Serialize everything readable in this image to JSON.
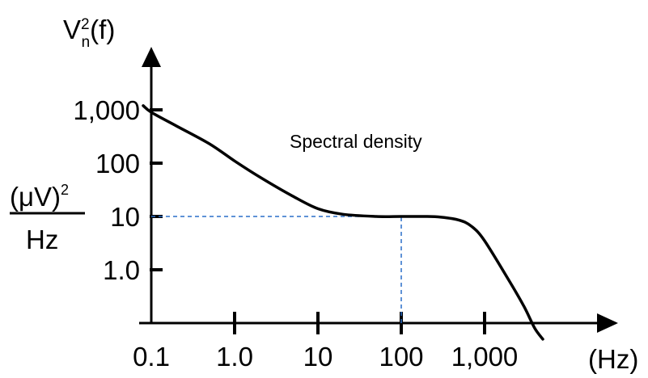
{
  "chart_data": {
    "type": "line",
    "title": "",
    "annotation": "Spectral density",
    "ylabel": {
      "symbol": "V",
      "superscript": "2",
      "subscript": "n",
      "argument": "(f)",
      "unit_numerator": "(μV)",
      "unit_numerator_superscript": "2",
      "unit_denominator": "Hz"
    },
    "xlabel": "(Hz)",
    "x_scale": "log",
    "y_scale": "log",
    "x_ticks": [
      {
        "value": 0.1,
        "label": "0.1"
      },
      {
        "value": 1,
        "label": "1.0"
      },
      {
        "value": 10,
        "label": "10"
      },
      {
        "value": 100,
        "label": "100"
      },
      {
        "value": 1000,
        "label": "1,000"
      }
    ],
    "y_ticks": [
      {
        "value": 1,
        "label": "1.0"
      },
      {
        "value": 10,
        "label": "10"
      },
      {
        "value": 100,
        "label": "100"
      },
      {
        "value": 1000,
        "label": "1,000"
      }
    ],
    "xlim": [
      0.1,
      10000
    ],
    "ylim": [
      0.1,
      10000
    ],
    "series": [
      {
        "x": [
          0.08,
          0.1,
          0.2,
          0.5,
          1,
          2,
          5,
          10,
          20,
          50,
          100,
          200,
          300,
          500,
          700,
          1000,
          2000,
          3000,
          4000,
          5000
        ],
        "y": [
          1200,
          900,
          500,
          230,
          110,
          55,
          24,
          14,
          11,
          10,
          10,
          10,
          9.7,
          8.5,
          6.5,
          3.5,
          0.6,
          0.2,
          0.08,
          0.05
        ]
      }
    ],
    "reference_lines": [
      {
        "type": "horizontal",
        "y": 10,
        "x_from": 0.1,
        "x_to": 100,
        "style": "dashed",
        "color": "#2a6fc9"
      },
      {
        "type": "vertical",
        "x": 100,
        "y_from": 0.1,
        "y_to": 10,
        "style": "dashed",
        "color": "#2a6fc9"
      }
    ],
    "colors": {
      "curve": "#000000",
      "axes": "#000000",
      "reference": "#2a6fc9"
    },
    "grid": false,
    "legend": "none"
  }
}
